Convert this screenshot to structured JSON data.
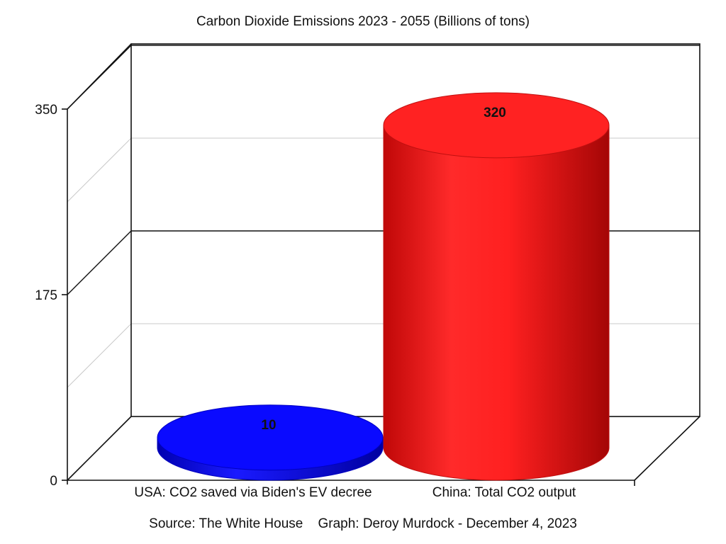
{
  "chart_data": {
    "type": "bar",
    "title": "Carbon Dioxide Emissions 2023 - 2055 (Billions of tons)",
    "categories": [
      "USA: CO2 saved via Biden's EV decree",
      "China: Total CO2 output"
    ],
    "values": [
      10,
      320
    ],
    "data_labels": [
      "10",
      "320"
    ],
    "colors": [
      "#1010f0",
      "#e81818"
    ],
    "ylim": [
      0,
      350
    ],
    "yticks": [
      0,
      175,
      350
    ],
    "ytick_labels": [
      "0",
      "175",
      "350"
    ],
    "grid": true,
    "style": "3d-cylinder",
    "footnote": "Source: The White House    Graph: Deroy Murdock - December 4, 2023"
  }
}
